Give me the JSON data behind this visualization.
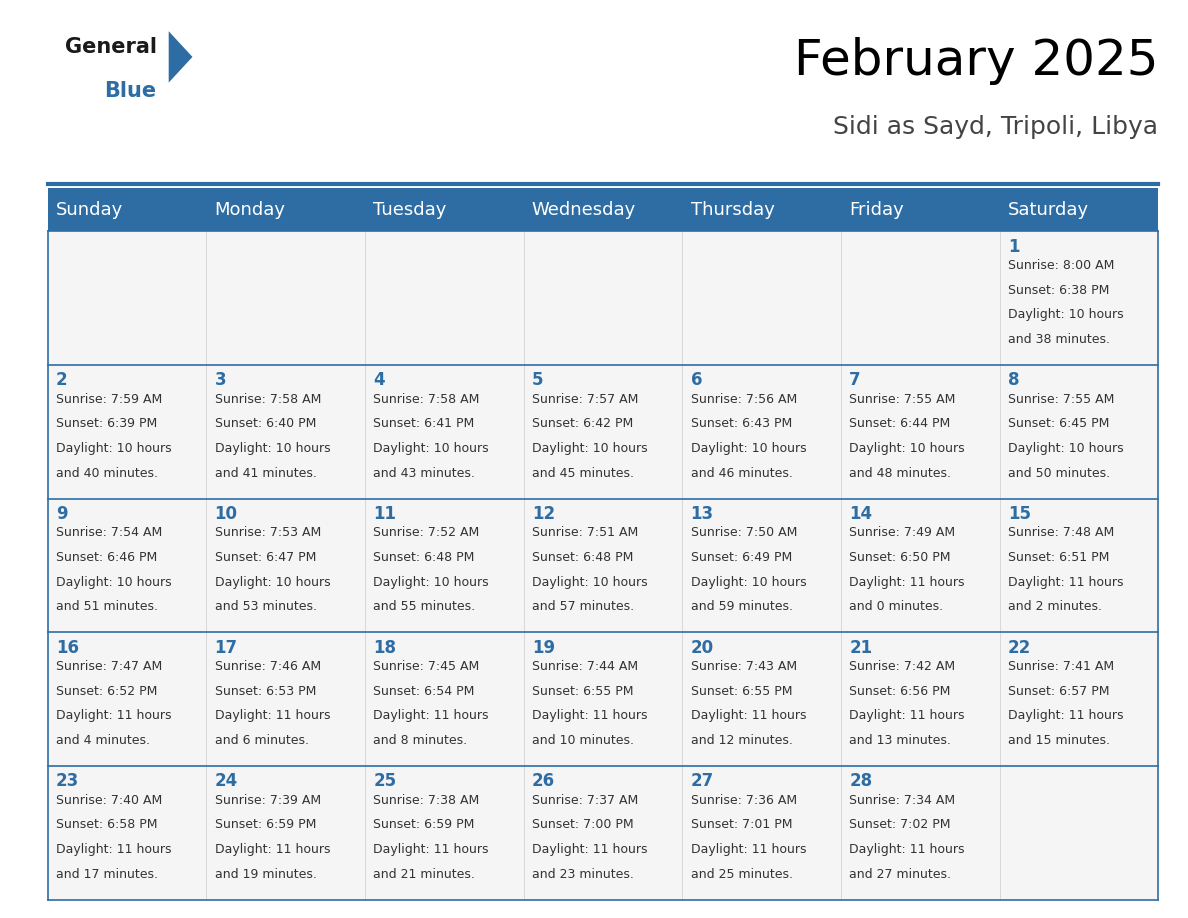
{
  "title": "February 2025",
  "subtitle": "Sidi as Sayd, Tripoli, Libya",
  "header_color": "#2E6DA4",
  "header_text_color": "#FFFFFF",
  "cell_bg_color": "#F5F5F5",
  "border_color": "#2E6DA4",
  "text_color": "#333333",
  "day_headers": [
    "Sunday",
    "Monday",
    "Tuesday",
    "Wednesday",
    "Thursday",
    "Friday",
    "Saturday"
  ],
  "title_fontsize": 36,
  "subtitle_fontsize": 18,
  "header_fontsize": 13,
  "day_num_fontsize": 12,
  "cell_text_fontsize": 9,
  "calendar": [
    [
      null,
      null,
      null,
      null,
      null,
      null,
      {
        "day": 1,
        "sunrise": "8:00 AM",
        "sunset": "6:38 PM",
        "daylight_h": "10 hours",
        "daylight_m": "and 38 minutes."
      }
    ],
    [
      {
        "day": 2,
        "sunrise": "7:59 AM",
        "sunset": "6:39 PM",
        "daylight_h": "10 hours",
        "daylight_m": "and 40 minutes."
      },
      {
        "day": 3,
        "sunrise": "7:58 AM",
        "sunset": "6:40 PM",
        "daylight_h": "10 hours",
        "daylight_m": "and 41 minutes."
      },
      {
        "day": 4,
        "sunrise": "7:58 AM",
        "sunset": "6:41 PM",
        "daylight_h": "10 hours",
        "daylight_m": "and 43 minutes."
      },
      {
        "day": 5,
        "sunrise": "7:57 AM",
        "sunset": "6:42 PM",
        "daylight_h": "10 hours",
        "daylight_m": "and 45 minutes."
      },
      {
        "day": 6,
        "sunrise": "7:56 AM",
        "sunset": "6:43 PM",
        "daylight_h": "10 hours",
        "daylight_m": "and 46 minutes."
      },
      {
        "day": 7,
        "sunrise": "7:55 AM",
        "sunset": "6:44 PM",
        "daylight_h": "10 hours",
        "daylight_m": "and 48 minutes."
      },
      {
        "day": 8,
        "sunrise": "7:55 AM",
        "sunset": "6:45 PM",
        "daylight_h": "10 hours",
        "daylight_m": "and 50 minutes."
      }
    ],
    [
      {
        "day": 9,
        "sunrise": "7:54 AM",
        "sunset": "6:46 PM",
        "daylight_h": "10 hours",
        "daylight_m": "and 51 minutes."
      },
      {
        "day": 10,
        "sunrise": "7:53 AM",
        "sunset": "6:47 PM",
        "daylight_h": "10 hours",
        "daylight_m": "and 53 minutes."
      },
      {
        "day": 11,
        "sunrise": "7:52 AM",
        "sunset": "6:48 PM",
        "daylight_h": "10 hours",
        "daylight_m": "and 55 minutes."
      },
      {
        "day": 12,
        "sunrise": "7:51 AM",
        "sunset": "6:48 PM",
        "daylight_h": "10 hours",
        "daylight_m": "and 57 minutes."
      },
      {
        "day": 13,
        "sunrise": "7:50 AM",
        "sunset": "6:49 PM",
        "daylight_h": "10 hours",
        "daylight_m": "and 59 minutes."
      },
      {
        "day": 14,
        "sunrise": "7:49 AM",
        "sunset": "6:50 PM",
        "daylight_h": "11 hours",
        "daylight_m": "and 0 minutes."
      },
      {
        "day": 15,
        "sunrise": "7:48 AM",
        "sunset": "6:51 PM",
        "daylight_h": "11 hours",
        "daylight_m": "and 2 minutes."
      }
    ],
    [
      {
        "day": 16,
        "sunrise": "7:47 AM",
        "sunset": "6:52 PM",
        "daylight_h": "11 hours",
        "daylight_m": "and 4 minutes."
      },
      {
        "day": 17,
        "sunrise": "7:46 AM",
        "sunset": "6:53 PM",
        "daylight_h": "11 hours",
        "daylight_m": "and 6 minutes."
      },
      {
        "day": 18,
        "sunrise": "7:45 AM",
        "sunset": "6:54 PM",
        "daylight_h": "11 hours",
        "daylight_m": "and 8 minutes."
      },
      {
        "day": 19,
        "sunrise": "7:44 AM",
        "sunset": "6:55 PM",
        "daylight_h": "11 hours",
        "daylight_m": "and 10 minutes."
      },
      {
        "day": 20,
        "sunrise": "7:43 AM",
        "sunset": "6:55 PM",
        "daylight_h": "11 hours",
        "daylight_m": "and 12 minutes."
      },
      {
        "day": 21,
        "sunrise": "7:42 AM",
        "sunset": "6:56 PM",
        "daylight_h": "11 hours",
        "daylight_m": "and 13 minutes."
      },
      {
        "day": 22,
        "sunrise": "7:41 AM",
        "sunset": "6:57 PM",
        "daylight_h": "11 hours",
        "daylight_m": "and 15 minutes."
      }
    ],
    [
      {
        "day": 23,
        "sunrise": "7:40 AM",
        "sunset": "6:58 PM",
        "daylight_h": "11 hours",
        "daylight_m": "and 17 minutes."
      },
      {
        "day": 24,
        "sunrise": "7:39 AM",
        "sunset": "6:59 PM",
        "daylight_h": "11 hours",
        "daylight_m": "and 19 minutes."
      },
      {
        "day": 25,
        "sunrise": "7:38 AM",
        "sunset": "6:59 PM",
        "daylight_h": "11 hours",
        "daylight_m": "and 21 minutes."
      },
      {
        "day": 26,
        "sunrise": "7:37 AM",
        "sunset": "7:00 PM",
        "daylight_h": "11 hours",
        "daylight_m": "and 23 minutes."
      },
      {
        "day": 27,
        "sunrise": "7:36 AM",
        "sunset": "7:01 PM",
        "daylight_h": "11 hours",
        "daylight_m": "and 25 minutes."
      },
      {
        "day": 28,
        "sunrise": "7:34 AM",
        "sunset": "7:02 PM",
        "daylight_h": "11 hours",
        "daylight_m": "and 27 minutes."
      },
      null
    ]
  ]
}
